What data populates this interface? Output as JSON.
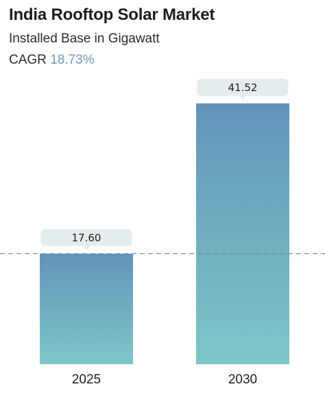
{
  "header": {
    "title": "India Rooftop Solar Market",
    "subtitle": "Installed Base in Gigawatt",
    "cagr_label": "CAGR",
    "cagr_value": "18.73%"
  },
  "colors": {
    "bar_top": "#6294b9",
    "bar_bottom": "#7ec6c8",
    "label_bg": "#e4ecee",
    "reference_line": "#6e93ad"
  },
  "chart_data": {
    "type": "bar",
    "title": "India Rooftop Solar Market",
    "subtitle": "Installed Base in Gigawatt",
    "categories": [
      "2025",
      "2030"
    ],
    "values": [
      17.6,
      41.52
    ],
    "value_labels": [
      "17.60",
      "41.52"
    ],
    "ylim": [
      0,
      41.52
    ],
    "grid": false,
    "legend": "none",
    "reference_line": {
      "value": 17.6,
      "style": "dashed"
    }
  }
}
